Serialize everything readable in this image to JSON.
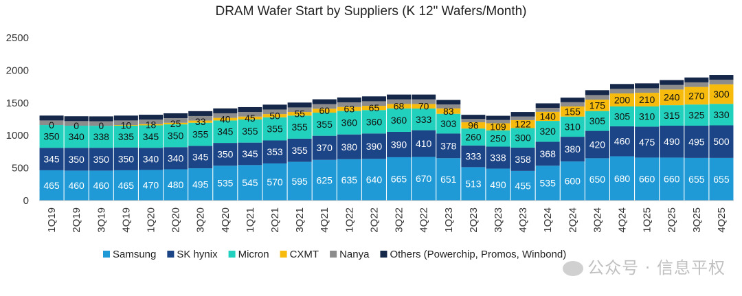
{
  "chart_data": {
    "type": "bar",
    "stacked": true,
    "title": "DRAM Wafer Start by Suppliers (K 12\" Wafers/Month)",
    "ylim": [
      0,
      2500
    ],
    "yticks": [
      "0",
      "500",
      "1000",
      "1500",
      "2000",
      "2500"
    ],
    "legend_position": "bottom",
    "categories": [
      "1Q19",
      "2Q19",
      "3Q19",
      "4Q19",
      "1Q20",
      "2Q20",
      "3Q20",
      "4Q20",
      "1Q21",
      "2Q21",
      "3Q21",
      "4Q21",
      "1Q22",
      "2Q22",
      "3Q22",
      "4Q22",
      "1Q23",
      "2Q23",
      "3Q23",
      "4Q23",
      "1Q24",
      "2Q24",
      "3Q24",
      "4Q24",
      "1Q25",
      "2Q25",
      "3Q25",
      "4Q25"
    ],
    "series": [
      {
        "name": "Samsung",
        "color": "#1f9ad6",
        "label_color": "#ffffff",
        "values": [
          465,
          460,
          460,
          465,
          470,
          480,
          495,
          535,
          545,
          570,
          595,
          625,
          635,
          640,
          665,
          670,
          651,
          513,
          490,
          455,
          535,
          600,
          650,
          680,
          660,
          660,
          655,
          655
        ]
      },
      {
        "name": "SK hynix",
        "color": "#1c4587",
        "label_color": "#ffffff",
        "values": [
          345,
          350,
          350,
          350,
          340,
          340,
          345,
          350,
          345,
          353,
          355,
          370,
          380,
          390,
          390,
          410,
          378,
          333,
          338,
          358,
          368,
          380,
          420,
          460,
          475,
          490,
          495,
          500
        ]
      },
      {
        "name": "Micron",
        "color": "#22d1bd",
        "label_color": "#111111",
        "values": [
          350,
          340,
          338,
          335,
          345,
          350,
          355,
          345,
          355,
          355,
          355,
          355,
          360,
          360,
          360,
          333,
          303,
          260,
          250,
          300,
          320,
          310,
          305,
          305,
          310,
          315,
          325,
          330
        ]
      },
      {
        "name": "CXMT",
        "color": "#f7bb0e",
        "label_color": "#111111",
        "values": [
          0,
          0,
          0,
          10,
          18,
          25,
          33,
          40,
          45,
          50,
          55,
          60,
          63,
          65,
          68,
          70,
          83,
          96,
          109,
          122,
          140,
          155,
          175,
          200,
          210,
          240,
          270,
          300
        ]
      },
      {
        "name": "Nanya",
        "color": "#8c8c8c",
        "label_color": "#111111",
        "values": [
          70,
          70,
          70,
          70,
          70,
          70,
          70,
          70,
          70,
          70,
          70,
          70,
          70,
          70,
          70,
          70,
          60,
          50,
          50,
          55,
          60,
          65,
          70,
          70,
          70,
          70,
          70,
          70
        ]
      },
      {
        "name": "Others (Powerchip, Promos, Winbond)",
        "color": "#16284a",
        "label_color": "#ffffff",
        "values": [
          75,
          75,
          75,
          75,
          75,
          75,
          75,
          75,
          75,
          75,
          75,
          75,
          75,
          75,
          75,
          75,
          70,
          65,
          65,
          70,
          70,
          70,
          75,
          75,
          75,
          75,
          75,
          75
        ]
      }
    ],
    "labeled_series": [
      "Samsung",
      "SK hynix",
      "Micron",
      "CXMT"
    ]
  },
  "watermark": "公众号 · 信息平权"
}
